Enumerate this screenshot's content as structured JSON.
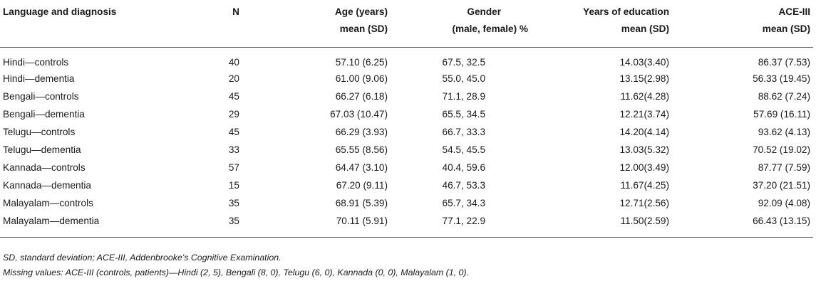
{
  "table": {
    "headers": {
      "language": "Language and diagnosis",
      "n": "N",
      "age_line1": "Age (years)",
      "age_line2": "mean (SD)",
      "gender_line1": "Gender",
      "gender_line2": "(male, female) %",
      "education_line1": "Years of education",
      "education_line2": "mean (SD)",
      "ace_line1": "ACE-III",
      "ace_line2": "mean (SD)"
    },
    "rows": [
      {
        "group": "Hindi—controls",
        "n": "40",
        "age": "57.10 (6.25)",
        "gender": "67.5, 32.5",
        "education": "14.03(3.40)",
        "ace": "86.37 (7.53)"
      },
      {
        "group": "Hindi—dementia",
        "n": "20",
        "age": "61.00 (9.06)",
        "gender": "55.0, 45.0",
        "education": "13.15(2.98)",
        "ace": "56.33 (19.45)"
      },
      {
        "group": "Bengali—controls",
        "n": "45",
        "age": "66.27 (6.18)",
        "gender": "71.1, 28.9",
        "education": "11.62(4.28)",
        "ace": "88.62 (7.24)"
      },
      {
        "group": "Bengali—dementia",
        "n": "29",
        "age": "67.03 (10.47)",
        "gender": "65.5, 34.5",
        "education": "12.21(3.74)",
        "ace": "57.69 (16.11)"
      },
      {
        "group": "Telugu—controls",
        "n": "45",
        "age": "66.29 (3.93)",
        "gender": "66.7, 33.3",
        "education": "14.20(4.14)",
        "ace": "93.62 (4.13)"
      },
      {
        "group": "Telugu—dementia",
        "n": "33",
        "age": "65.55 (8.56)",
        "gender": "54.5, 45.5",
        "education": "13.03(5.32)",
        "ace": "70.52 (19.02)"
      },
      {
        "group": "Kannada—controls",
        "n": "57",
        "age": "64.47 (3.10)",
        "gender": "40.4, 59.6",
        "education": "12.00(3.49)",
        "ace": "87.77 (7.59)"
      },
      {
        "group": "Kannada—dementia",
        "n": "15",
        "age": "67.20 (9.11)",
        "gender": "46.7, 53.3",
        "education": "11.67(4.25)",
        "ace": "37.20 (21.51)"
      },
      {
        "group": "Malayalam—controls",
        "n": "35",
        "age": "68.91 (5.39)",
        "gender": "65.7, 34.3",
        "education": "12.71(2.56)",
        "ace": "92.09 (4.08)"
      },
      {
        "group": "Malayalam—dementia",
        "n": "35",
        "age": "70.11 (5.91)",
        "gender": "77.1, 22.9",
        "education": "11.50(2.59)",
        "ace": "66.43 (13.15)"
      }
    ]
  },
  "footnotes": {
    "abbreviations": "SD, standard deviation; ACE-III, Addenbrooke's Cognitive Examination.",
    "missing": "Missing values: ACE-III (controls, patients)—Hindi (2, 5), Bengali (8, 0), Telugu (6, 0), Kannada (0, 0), Malayalam (1, 0)."
  }
}
